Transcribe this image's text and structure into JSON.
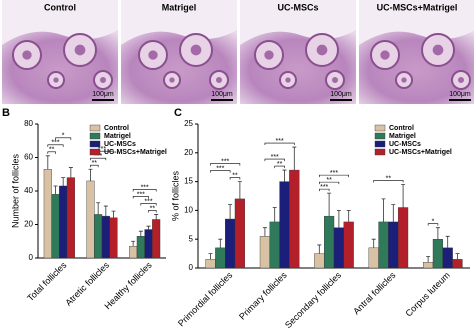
{
  "panel_a": {
    "letter": "A",
    "images": [
      {
        "label": "Control",
        "scale": "100μm"
      },
      {
        "label": "Matrigel",
        "scale": "100μm"
      },
      {
        "label": "UC-MSCs",
        "scale": "100μm"
      },
      {
        "label": "UC-MSCs+Matrigel",
        "scale": "100μm"
      }
    ]
  },
  "chart_data": [
    {
      "type": "bar",
      "letter": "B",
      "ylabel": "Number of follicles",
      "legend": "upper right",
      "categories": [
        "Total follicles",
        "Atretic follicles",
        "Healthy follicles"
      ],
      "series": [
        {
          "name": "Control",
          "color": "#d9c2a3",
          "values": [
            53,
            46,
            7
          ],
          "errors": [
            8,
            7,
            3
          ]
        },
        {
          "name": "Matrigel",
          "color": "#2f7a5a",
          "values": [
            38,
            26,
            13
          ],
          "errors": [
            5,
            7,
            3
          ]
        },
        {
          "name": "UC-MSCs",
          "color": "#1c1f7a",
          "values": [
            43,
            25,
            17
          ],
          "errors": [
            5,
            6,
            2
          ]
        },
        {
          "name": "UC-MSCs+Matrigel",
          "color": "#b3202a",
          "values": [
            48,
            24,
            23
          ],
          "errors": [
            6,
            4,
            3
          ]
        }
      ],
      "ylim": [
        0,
        80
      ],
      "yticks": [
        0,
        20,
        40,
        60,
        80
      ],
      "significance": [
        {
          "category": 0,
          "between": [
            0,
            1
          ],
          "label": "**"
        },
        {
          "category": 0,
          "between": [
            0,
            2
          ],
          "label": "***"
        },
        {
          "category": 0,
          "between": [
            1,
            3
          ],
          "label": "*"
        },
        {
          "category": 1,
          "between": [
            0,
            1
          ],
          "label": "**"
        },
        {
          "category": 1,
          "between": [
            0,
            2
          ],
          "label": "***"
        },
        {
          "category": 1,
          "between": [
            0,
            3
          ],
          "label": "***"
        },
        {
          "category": 2,
          "between": [
            2,
            3
          ],
          "label": "**"
        },
        {
          "category": 2,
          "between": [
            1,
            3
          ],
          "label": "***"
        },
        {
          "category": 2,
          "between": [
            0,
            2
          ],
          "label": "***"
        },
        {
          "category": 2,
          "between": [
            0,
            3
          ],
          "label": "***"
        }
      ]
    },
    {
      "type": "bar",
      "letter": "C",
      "ylabel": "% of follicles",
      "legend": "upper right",
      "categories": [
        "Primordial follicles",
        "Primary follicles",
        "Secondary follicles",
        "Antral follicles",
        "Corpus luteum"
      ],
      "series": [
        {
          "name": "Control",
          "color": "#d9c2a3",
          "values": [
            1.5,
            5.5,
            2.5,
            3.5,
            1
          ],
          "errors": [
            1,
            1.5,
            1.5,
            1.5,
            1
          ]
        },
        {
          "name": "Matrigel",
          "color": "#2f7a5a",
          "values": [
            3.5,
            8,
            9,
            8,
            5
          ],
          "errors": [
            1.5,
            2.5,
            4,
            4,
            2
          ]
        },
        {
          "name": "UC-MSCs",
          "color": "#1c1f7a",
          "values": [
            8.5,
            15,
            7,
            8,
            3.5
          ],
          "errors": [
            2.5,
            2,
            3,
            3,
            2
          ]
        },
        {
          "name": "UC-MSCs+Matrigel",
          "color": "#b3202a",
          "values": [
            12,
            17,
            8,
            10.5,
            1.5
          ],
          "errors": [
            3,
            4,
            2,
            4,
            1
          ]
        }
      ],
      "ylim": [
        0,
        25
      ],
      "yticks": [
        0,
        5,
        10,
        15,
        20,
        25
      ],
      "significance": [
        {
          "category": 0,
          "between": [
            2,
            3
          ],
          "label": "**"
        },
        {
          "category": 0,
          "between": [
            0,
            2
          ],
          "label": "***"
        },
        {
          "category": 0,
          "between": [
            0,
            3
          ],
          "label": "***"
        },
        {
          "category": 1,
          "between": [
            1,
            2
          ],
          "label": "**"
        },
        {
          "category": 1,
          "between": [
            0,
            2
          ],
          "label": "***"
        },
        {
          "category": 1,
          "between": [
            0,
            3
          ],
          "label": "***"
        },
        {
          "category": 2,
          "between": [
            0,
            1
          ],
          "label": "***"
        },
        {
          "category": 2,
          "between": [
            0,
            2
          ],
          "label": "**"
        },
        {
          "category": 2,
          "between": [
            0,
            3
          ],
          "label": "***"
        },
        {
          "category": 3,
          "between": [
            0,
            3
          ],
          "label": "**"
        },
        {
          "category": 4,
          "between": [
            0,
            1
          ],
          "label": "*"
        }
      ]
    }
  ]
}
